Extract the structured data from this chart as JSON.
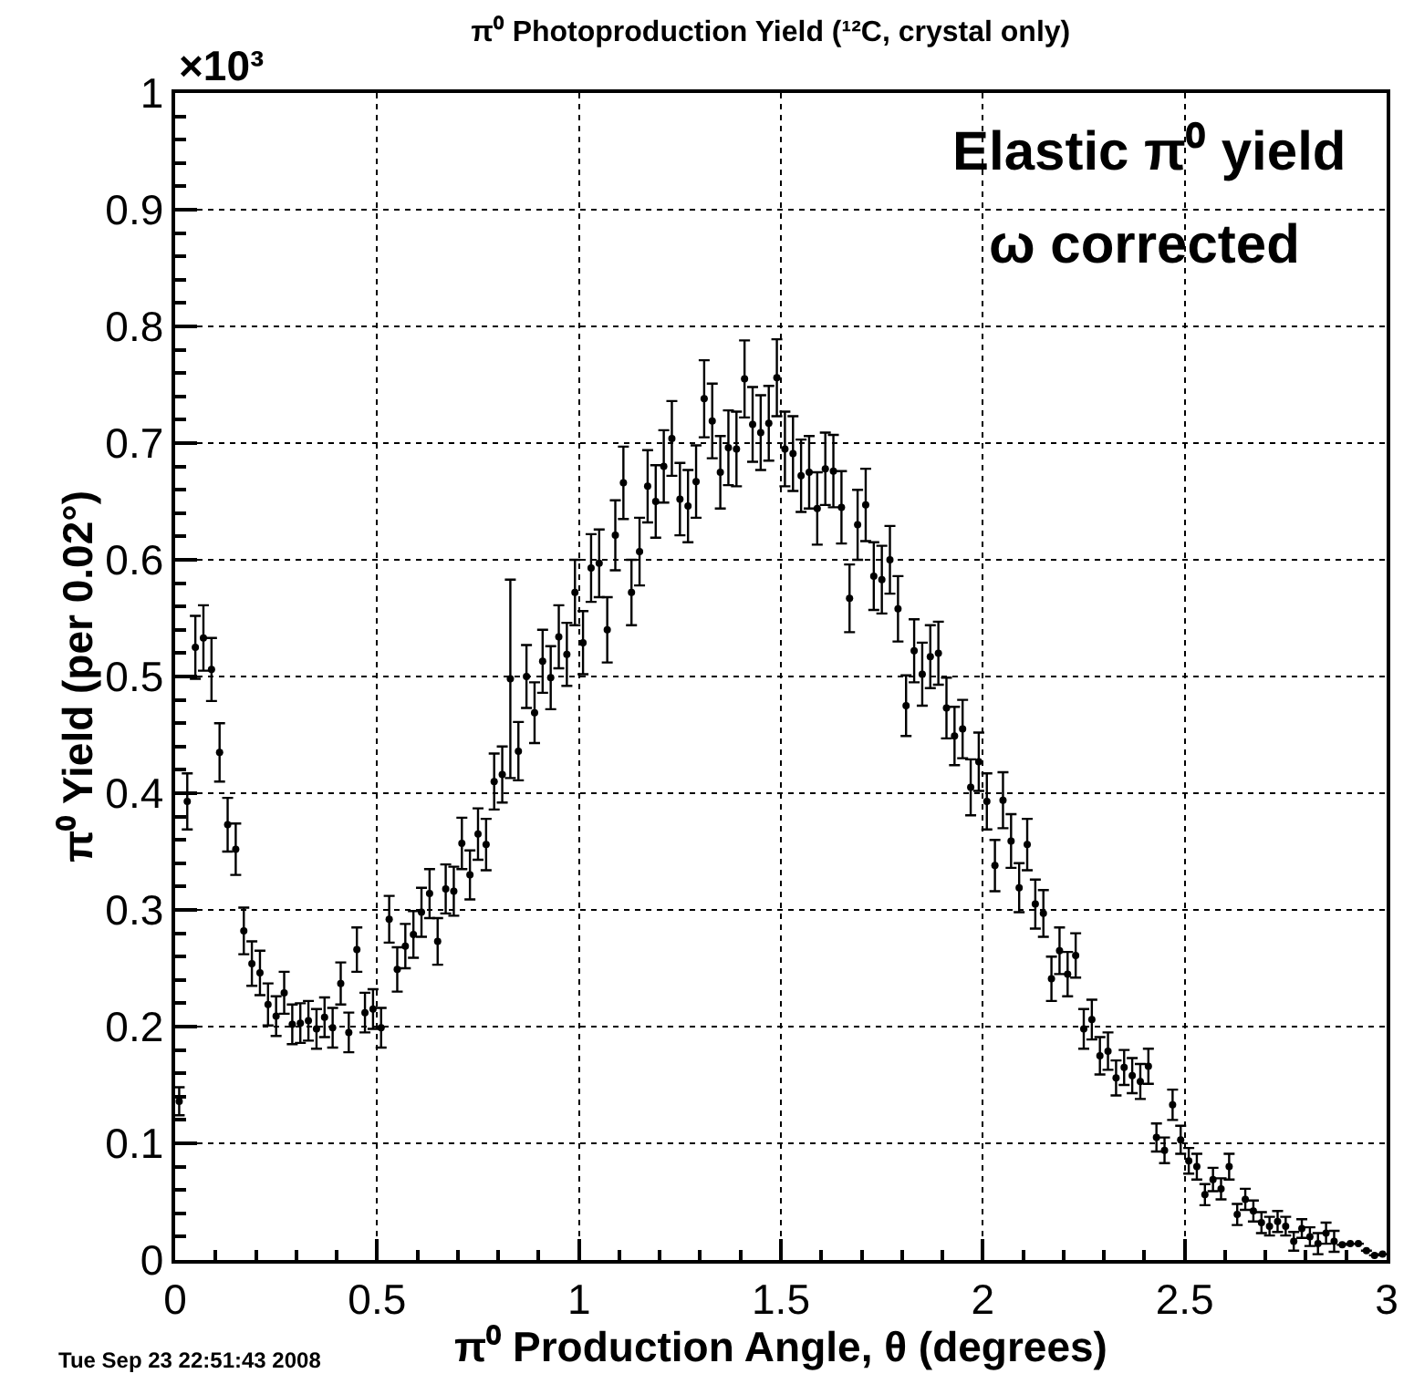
{
  "chart_data": {
    "type": "scatter",
    "title": "π⁰ Photoproduction Yield (¹²C, crystal only)",
    "xlabel": "π⁰ Production Angle, θ (degrees)",
    "ylabel": "π⁰ Yield (per 0.02°)",
    "annotations": [
      "×10³",
      "Elastic π⁰ yield",
      "ω corrected",
      "Tue Sep 23 22:51:43 2008"
    ],
    "x": [
      0.01,
      0.03,
      0.05,
      0.07,
      0.09,
      0.11,
      0.13,
      0.15,
      0.17,
      0.19,
      0.21,
      0.23,
      0.25,
      0.27,
      0.29,
      0.31,
      0.33,
      0.35,
      0.37,
      0.39,
      0.41,
      0.43,
      0.45,
      0.47,
      0.49,
      0.51,
      0.53,
      0.55,
      0.57,
      0.59,
      0.61,
      0.63,
      0.65,
      0.67,
      0.69,
      0.71,
      0.73,
      0.75,
      0.77,
      0.79,
      0.81,
      0.83,
      0.85,
      0.87,
      0.89,
      0.91,
      0.93,
      0.95,
      0.97,
      0.99,
      1.01,
      1.03,
      1.05,
      1.07,
      1.09,
      1.11,
      1.13,
      1.15,
      1.17,
      1.19,
      1.21,
      1.23,
      1.25,
      1.27,
      1.29,
      1.31,
      1.33,
      1.35,
      1.37,
      1.39,
      1.41,
      1.43,
      1.45,
      1.47,
      1.49,
      1.51,
      1.53,
      1.55,
      1.57,
      1.59,
      1.61,
      1.63,
      1.65,
      1.67,
      1.69,
      1.71,
      1.73,
      1.75,
      1.77,
      1.79,
      1.81,
      1.83,
      1.85,
      1.87,
      1.89,
      1.91,
      1.93,
      1.95,
      1.97,
      1.99,
      2.01,
      2.03,
      2.05,
      2.07,
      2.09,
      2.11,
      2.13,
      2.15,
      2.17,
      2.19,
      2.21,
      2.23,
      2.25,
      2.27,
      2.29,
      2.31,
      2.33,
      2.35,
      2.37,
      2.39,
      2.41,
      2.43,
      2.45,
      2.47,
      2.49,
      2.51,
      2.53,
      2.55,
      2.57,
      2.59,
      2.61,
      2.63,
      2.65,
      2.67,
      2.69,
      2.71,
      2.73,
      2.75,
      2.77,
      2.79,
      2.81,
      2.83,
      2.85,
      2.87,
      2.89,
      2.91,
      2.93,
      2.95,
      2.97,
      2.99
    ],
    "series": [
      {
        "color": "#000000",
        "values": [
          0.136,
          0.393,
          0.525,
          0.533,
          0.506,
          0.435,
          0.373,
          0.352,
          0.282,
          0.254,
          0.246,
          0.219,
          0.209,
          0.229,
          0.202,
          0.203,
          0.205,
          0.198,
          0.208,
          0.199,
          0.237,
          0.195,
          0.266,
          0.212,
          0.215,
          0.199,
          0.292,
          0.249,
          0.269,
          0.279,
          0.298,
          0.314,
          0.273,
          0.318,
          0.316,
          0.357,
          0.33,
          0.365,
          0.356,
          0.41,
          0.416,
          0.498,
          0.436,
          0.5,
          0.469,
          0.513,
          0.499,
          0.534,
          0.519,
          0.572,
          0.529,
          0.593,
          0.597,
          0.54,
          0.621,
          0.666,
          0.572,
          0.607,
          0.663,
          0.65,
          0.68,
          0.704,
          0.652,
          0.646,
          0.667,
          0.738,
          0.719,
          0.675,
          0.696,
          0.695,
          0.755,
          0.716,
          0.709,
          0.717,
          0.756,
          0.695,
          0.691,
          0.672,
          0.675,
          0.644,
          0.678,
          0.676,
          0.645,
          0.567,
          0.63,
          0.647,
          0.586,
          0.583,
          0.6,
          0.558,
          0.475,
          0.522,
          0.502,
          0.517,
          0.52,
          0.473,
          0.449,
          0.455,
          0.405,
          0.427,
          0.393,
          0.338,
          0.394,
          0.359,
          0.319,
          0.356,
          0.305,
          0.297,
          0.241,
          0.265,
          0.245,
          0.261,
          0.198,
          0.206,
          0.175,
          0.179,
          0.156,
          0.165,
          0.158,
          0.153,
          0.166,
          0.105,
          0.094,
          0.133,
          0.103,
          0.085,
          0.08,
          0.056,
          0.069,
          0.061,
          0.08,
          0.039,
          0.052,
          0.042,
          0.032,
          0.029,
          0.033,
          0.029,
          0.016,
          0.027,
          0.02,
          0.014,
          0.023,
          0.016,
          0.013,
          0.014,
          0.014,
          0.008,
          0.004,
          0.005
        ],
        "errors": [
          0.012,
          0.024,
          0.027,
          0.028,
          0.027,
          0.025,
          0.023,
          0.022,
          0.02,
          0.019,
          0.019,
          0.018,
          0.017,
          0.018,
          0.017,
          0.017,
          0.017,
          0.017,
          0.017,
          0.017,
          0.018,
          0.017,
          0.019,
          0.017,
          0.017,
          0.017,
          0.02,
          0.019,
          0.019,
          0.02,
          0.021,
          0.021,
          0.02,
          0.021,
          0.021,
          0.022,
          0.021,
          0.022,
          0.022,
          0.024,
          0.024,
          0.085,
          0.025,
          0.027,
          0.026,
          0.027,
          0.027,
          0.027,
          0.027,
          0.028,
          0.027,
          0.029,
          0.029,
          0.028,
          0.03,
          0.031,
          0.028,
          0.029,
          0.031,
          0.031,
          0.031,
          0.032,
          0.031,
          0.031,
          0.031,
          0.033,
          0.032,
          0.031,
          0.032,
          0.032,
          0.033,
          0.032,
          0.032,
          0.032,
          0.033,
          0.032,
          0.032,
          0.031,
          0.031,
          0.031,
          0.031,
          0.031,
          0.031,
          0.029,
          0.03,
          0.031,
          0.029,
          0.029,
          0.029,
          0.028,
          0.026,
          0.027,
          0.027,
          0.027,
          0.027,
          0.026,
          0.025,
          0.025,
          0.024,
          0.025,
          0.024,
          0.022,
          0.024,
          0.023,
          0.021,
          0.022,
          0.021,
          0.02,
          0.019,
          0.02,
          0.019,
          0.019,
          0.017,
          0.017,
          0.016,
          0.016,
          0.015,
          0.015,
          0.015,
          0.015,
          0.015,
          0.012,
          0.011,
          0.013,
          0.012,
          0.011,
          0.011,
          0.009,
          0.01,
          0.009,
          0.011,
          0.009,
          0.009,
          0.009,
          0.009,
          0.008,
          0.009,
          0.008,
          0.008,
          0.008,
          0.008,
          0.009,
          0.009,
          0.009,
          null,
          null,
          null,
          null,
          null,
          null
        ]
      }
    ],
    "xlim": [
      0,
      3
    ],
    "xticks": [
      0,
      0.5,
      1,
      1.5,
      2,
      2.5,
      3
    ],
    "ylim": [
      0,
      1
    ],
    "yticks": [
      0,
      0.1,
      0.2,
      0.3,
      0.4,
      0.5,
      0.6,
      0.7,
      0.8,
      0.9,
      1
    ],
    "grid": true,
    "marker": "circle"
  }
}
